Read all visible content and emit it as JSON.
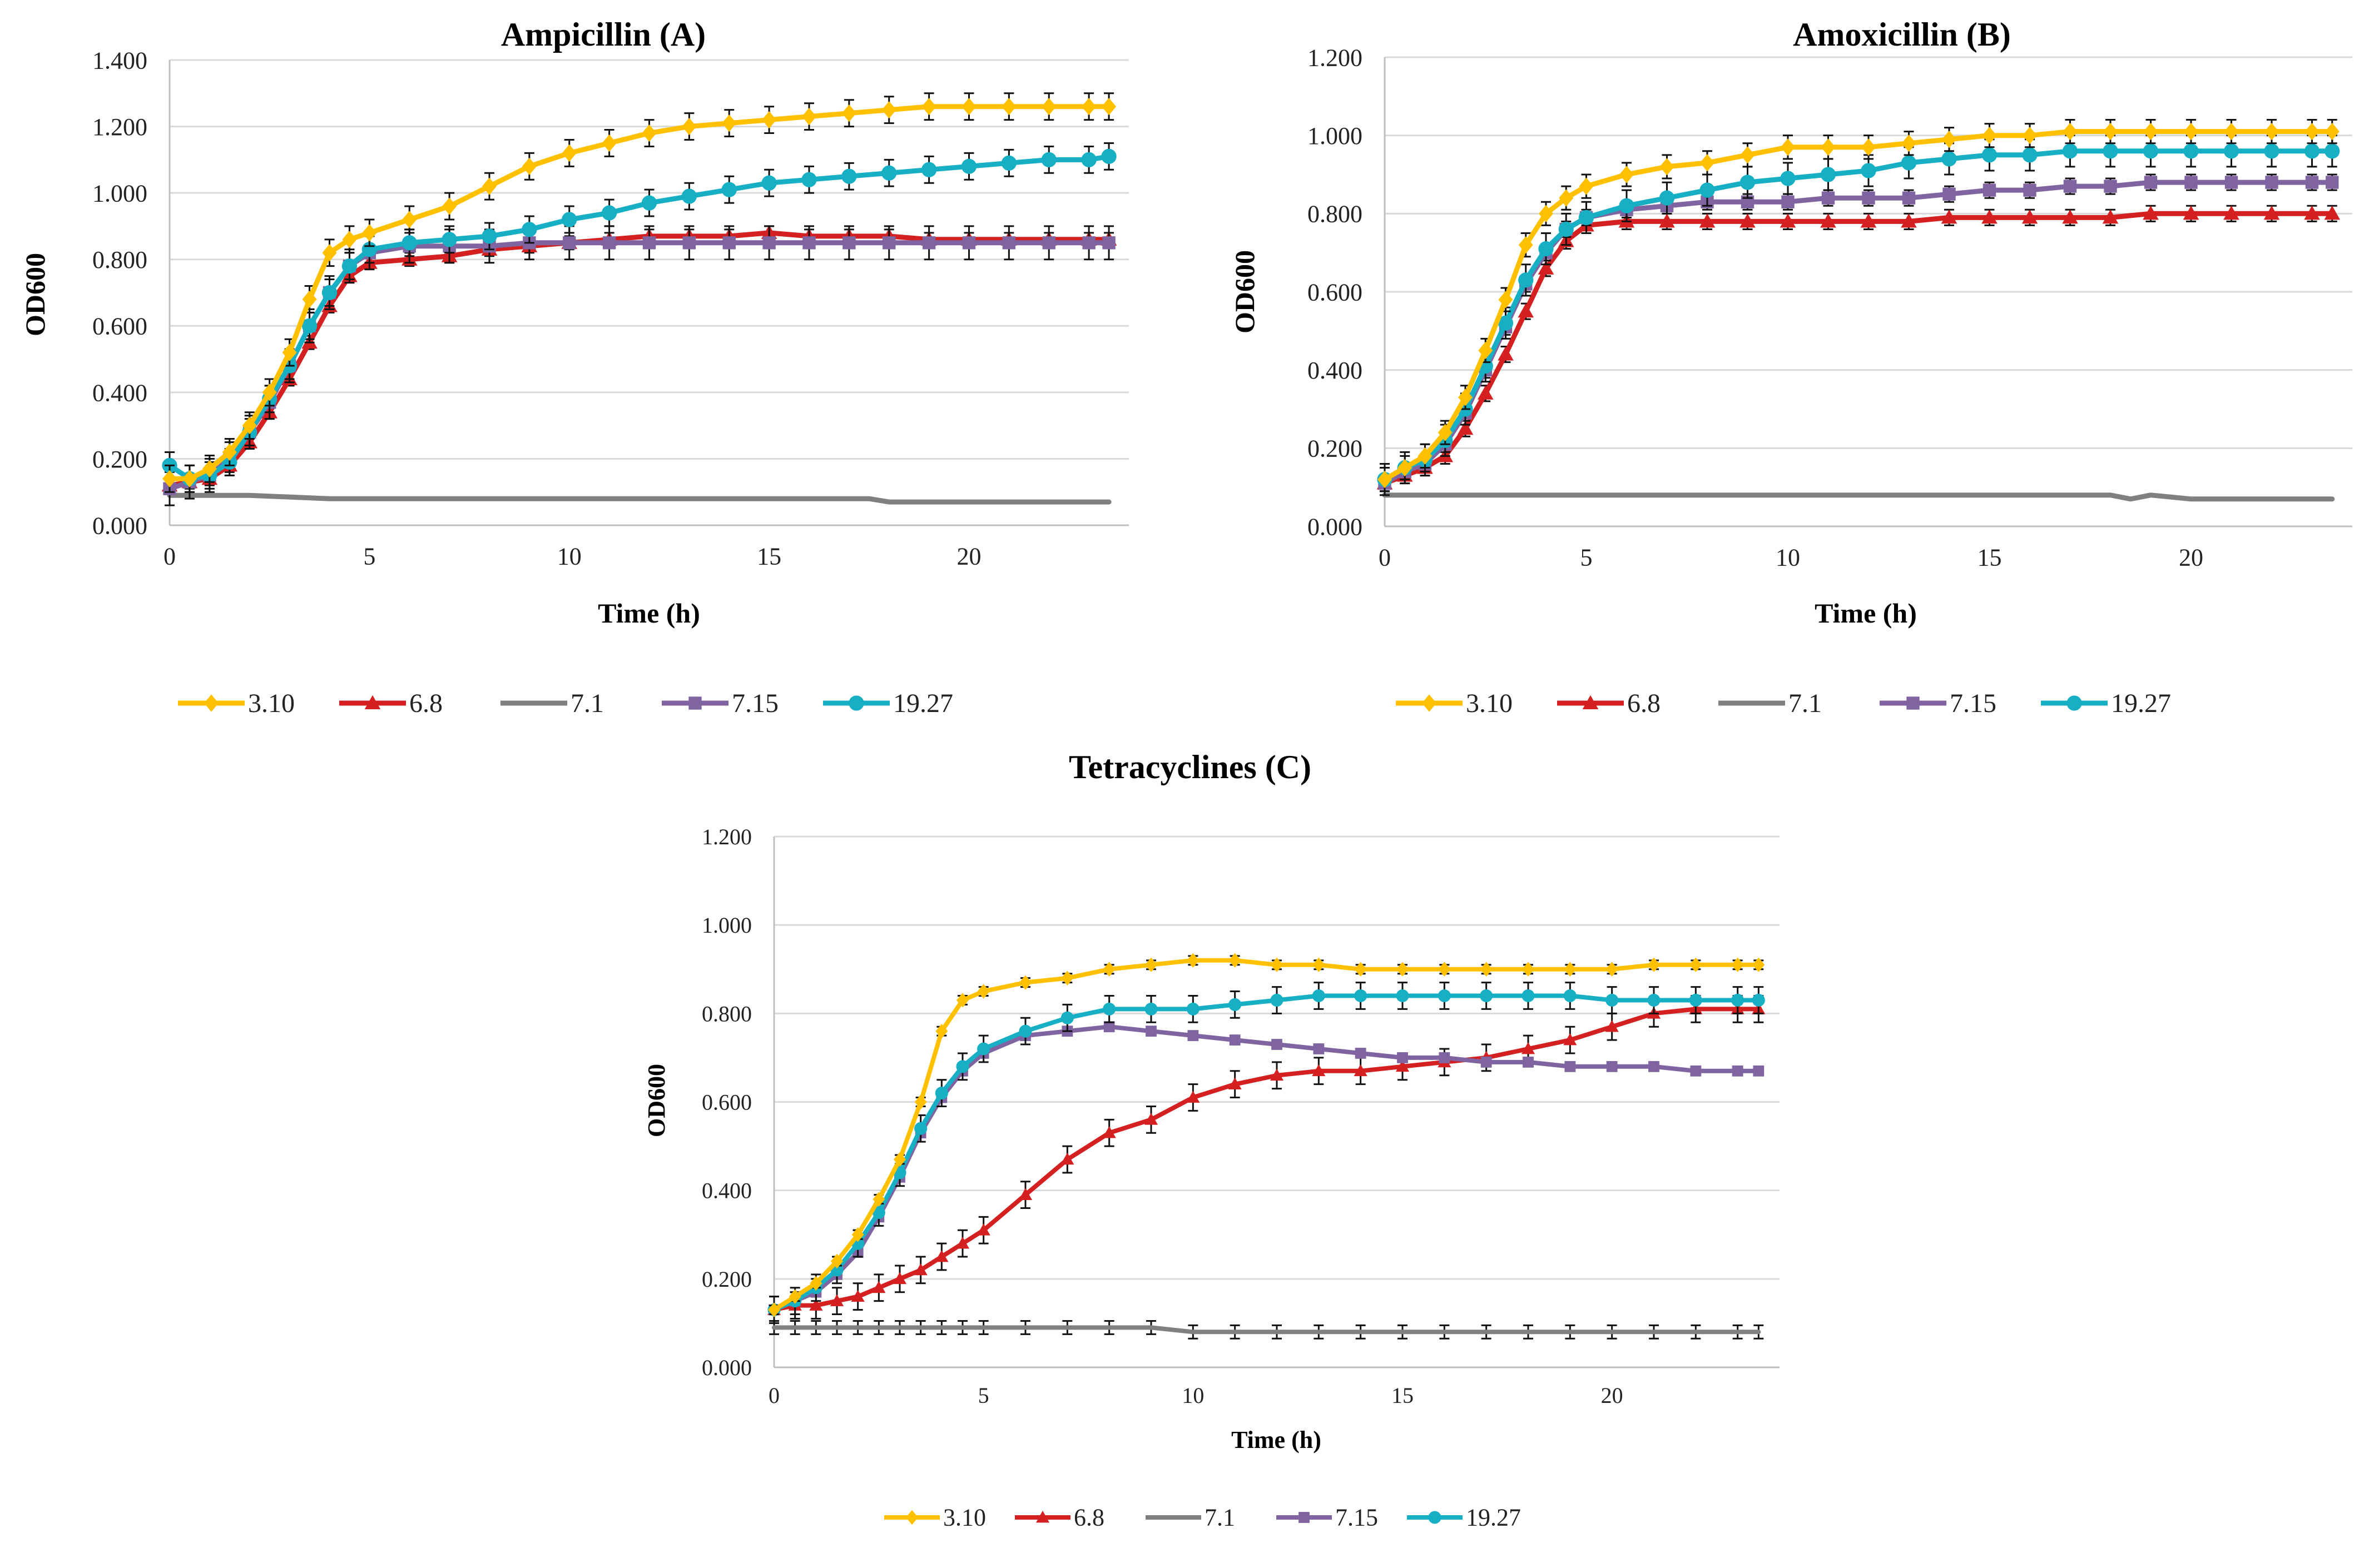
{
  "figure": {
    "series_names": [
      "3.10",
      "6.8",
      "7.1",
      "7.15",
      "19.27"
    ],
    "colors": {
      "3.10": "#FFC000",
      "6.8": "#D42020",
      "7.1": "#808080",
      "7.15": "#8064A2",
      "19.27": "#17AFC4"
    }
  },
  "chart_data": [
    {
      "type": "line",
      "title": "Ampicillin (A)",
      "xlabel": "Time (h)",
      "ylabel": "OD600",
      "xlim": [
        0,
        24
      ],
      "ylim": [
        0,
        1.4
      ],
      "xticks": [
        "0",
        "5",
        "10",
        "15",
        "20"
      ],
      "yticks": [
        "0.000",
        "0.200",
        "0.400",
        "0.600",
        "0.800",
        "1.000",
        "1.200",
        "1.400"
      ],
      "series": [
        {
          "name": "3.10",
          "marker": "diamond",
          "error": 0.04,
          "x": [
            0,
            0.5,
            1,
            1.5,
            2,
            2.5,
            3,
            3.5,
            4,
            4.5,
            5,
            6,
            7,
            8,
            9,
            10,
            11,
            12,
            13,
            14,
            15,
            16,
            17,
            18,
            19,
            20,
            21,
            22,
            23,
            23.5
          ],
          "y": [
            0.14,
            0.14,
            0.17,
            0.22,
            0.3,
            0.4,
            0.52,
            0.68,
            0.82,
            0.86,
            0.88,
            0.92,
            0.96,
            1.02,
            1.08,
            1.12,
            1.15,
            1.18,
            1.2,
            1.21,
            1.22,
            1.23,
            1.24,
            1.25,
            1.26,
            1.26,
            1.26,
            1.26,
            1.26,
            1.26
          ]
        },
        {
          "name": "6.8",
          "marker": "triangle",
          "error": 0.02,
          "x": [
            0,
            0.5,
            1,
            1.5,
            2,
            2.5,
            3,
            3.5,
            4,
            4.5,
            5,
            6,
            7,
            8,
            9,
            10,
            11,
            12,
            13,
            14,
            15,
            16,
            17,
            18,
            19,
            20,
            21,
            22,
            23,
            23.5
          ],
          "y": [
            0.12,
            0.13,
            0.14,
            0.18,
            0.25,
            0.34,
            0.44,
            0.55,
            0.66,
            0.75,
            0.79,
            0.8,
            0.81,
            0.83,
            0.84,
            0.85,
            0.86,
            0.87,
            0.87,
            0.87,
            0.88,
            0.87,
            0.87,
            0.87,
            0.86,
            0.86,
            0.86,
            0.86,
            0.86,
            0.86
          ]
        },
        {
          "name": "7.1",
          "marker": "none",
          "error": 0,
          "x": [
            0,
            2,
            4,
            6,
            8,
            10,
            12,
            14,
            16,
            17.5,
            18,
            20,
            22,
            23.5
          ],
          "y": [
            0.09,
            0.09,
            0.08,
            0.08,
            0.08,
            0.08,
            0.08,
            0.08,
            0.08,
            0.08,
            0.07,
            0.07,
            0.07,
            0.07
          ]
        },
        {
          "name": "7.15",
          "marker": "square",
          "error": 0.05,
          "x": [
            0,
            0.5,
            1,
            1.5,
            2,
            2.5,
            3,
            3.5,
            4,
            4.5,
            5,
            6,
            7,
            8,
            9,
            10,
            11,
            12,
            13,
            14,
            15,
            16,
            17,
            18,
            19,
            20,
            21,
            22,
            23,
            23.5
          ],
          "y": [
            0.11,
            0.13,
            0.15,
            0.2,
            0.28,
            0.37,
            0.48,
            0.6,
            0.7,
            0.78,
            0.82,
            0.84,
            0.84,
            0.84,
            0.85,
            0.85,
            0.85,
            0.85,
            0.85,
            0.85,
            0.85,
            0.85,
            0.85,
            0.85,
            0.85,
            0.85,
            0.85,
            0.85,
            0.85,
            0.85
          ]
        },
        {
          "name": "19.27",
          "marker": "circle",
          "error": 0.04,
          "x": [
            0,
            0.5,
            1,
            1.5,
            2,
            2.5,
            3,
            3.5,
            4,
            4.5,
            5,
            6,
            7,
            8,
            9,
            10,
            11,
            12,
            13,
            14,
            15,
            16,
            17,
            18,
            19,
            20,
            21,
            22,
            23,
            23.5
          ],
          "y": [
            0.18,
            0.14,
            0.15,
            0.19,
            0.28,
            0.38,
            0.48,
            0.6,
            0.7,
            0.78,
            0.83,
            0.85,
            0.86,
            0.87,
            0.89,
            0.92,
            0.94,
            0.97,
            0.99,
            1.01,
            1.03,
            1.04,
            1.05,
            1.06,
            1.07,
            1.08,
            1.09,
            1.1,
            1.1,
            1.11
          ]
        }
      ]
    },
    {
      "type": "line",
      "title": "Amoxicillin (B)",
      "xlabel": "Time (h)",
      "ylabel": "OD600",
      "xlim": [
        0,
        24
      ],
      "ylim": [
        0,
        1.2
      ],
      "xticks": [
        "0",
        "5",
        "10",
        "15",
        "20"
      ],
      "yticks": [
        "0.000",
        "0.200",
        "0.400",
        "0.600",
        "0.800",
        "1.000",
        "1.200"
      ],
      "series": [
        {
          "name": "3.10",
          "marker": "diamond",
          "error": 0.03,
          "x": [
            0,
            0.5,
            1,
            1.5,
            2,
            2.5,
            3,
            3.5,
            4,
            4.5,
            5,
            6,
            7,
            8,
            9,
            10,
            11,
            12,
            13,
            14,
            15,
            16,
            17,
            18,
            19,
            20,
            21,
            22,
            23,
            23.5
          ],
          "y": [
            0.12,
            0.15,
            0.18,
            0.24,
            0.33,
            0.45,
            0.58,
            0.72,
            0.8,
            0.84,
            0.87,
            0.9,
            0.92,
            0.93,
            0.95,
            0.97,
            0.97,
            0.97,
            0.98,
            0.99,
            1.0,
            1.0,
            1.01,
            1.01,
            1.01,
            1.01,
            1.01,
            1.01,
            1.01,
            1.01
          ]
        },
        {
          "name": "6.8",
          "marker": "triangle",
          "error": 0.02,
          "x": [
            0,
            0.5,
            1,
            1.5,
            2,
            2.5,
            3,
            3.5,
            4,
            4.5,
            5,
            6,
            7,
            8,
            9,
            10,
            11,
            12,
            13,
            14,
            15,
            16,
            17,
            18,
            19,
            20,
            21,
            22,
            23,
            23.5
          ],
          "y": [
            0.11,
            0.13,
            0.15,
            0.18,
            0.25,
            0.34,
            0.44,
            0.55,
            0.66,
            0.73,
            0.77,
            0.78,
            0.78,
            0.78,
            0.78,
            0.78,
            0.78,
            0.78,
            0.78,
            0.79,
            0.79,
            0.79,
            0.79,
            0.79,
            0.8,
            0.8,
            0.8,
            0.8,
            0.8,
            0.8
          ]
        },
        {
          "name": "7.1",
          "marker": "none",
          "error": 0,
          "x": [
            0,
            2,
            4,
            6,
            8,
            10,
            12,
            14,
            16,
            18,
            18.5,
            19,
            20,
            22,
            23.5
          ],
          "y": [
            0.08,
            0.08,
            0.08,
            0.08,
            0.08,
            0.08,
            0.08,
            0.08,
            0.08,
            0.08,
            0.07,
            0.08,
            0.07,
            0.07,
            0.07
          ]
        },
        {
          "name": "7.15",
          "marker": "square",
          "error": 0.02,
          "x": [
            0,
            0.5,
            1,
            1.5,
            2,
            2.5,
            3,
            3.5,
            4,
            4.5,
            5,
            6,
            7,
            8,
            9,
            10,
            11,
            12,
            13,
            14,
            15,
            16,
            17,
            18,
            19,
            20,
            21,
            22,
            23,
            23.5
          ],
          "y": [
            0.11,
            0.14,
            0.16,
            0.21,
            0.29,
            0.4,
            0.51,
            0.62,
            0.7,
            0.76,
            0.79,
            0.81,
            0.82,
            0.83,
            0.83,
            0.83,
            0.84,
            0.84,
            0.84,
            0.85,
            0.86,
            0.86,
            0.87,
            0.87,
            0.88,
            0.88,
            0.88,
            0.88,
            0.88,
            0.88
          ]
        },
        {
          "name": "19.27",
          "marker": "circle",
          "error": 0.04,
          "x": [
            0,
            0.5,
            1,
            1.5,
            2,
            2.5,
            3,
            3.5,
            4,
            4.5,
            5,
            6,
            7,
            8,
            9,
            10,
            11,
            12,
            13,
            14,
            15,
            16,
            17,
            18,
            19,
            20,
            21,
            22,
            23,
            23.5
          ],
          "y": [
            0.12,
            0.15,
            0.17,
            0.22,
            0.3,
            0.41,
            0.52,
            0.63,
            0.71,
            0.76,
            0.79,
            0.82,
            0.84,
            0.86,
            0.88,
            0.89,
            0.9,
            0.91,
            0.93,
            0.94,
            0.95,
            0.95,
            0.96,
            0.96,
            0.96,
            0.96,
            0.96,
            0.96,
            0.96,
            0.96
          ]
        }
      ]
    },
    {
      "type": "line",
      "title": "Tetracyclines (C)",
      "xlabel": "Time (h)",
      "ylabel": "OD600",
      "xlim": [
        0,
        24
      ],
      "ylim": [
        0,
        1.2
      ],
      "xticks": [
        "0",
        "5",
        "10",
        "15",
        "20"
      ],
      "yticks": [
        "0.000",
        "0.200",
        "0.400",
        "0.600",
        "0.800",
        "1.000",
        "1.200"
      ],
      "series": [
        {
          "name": "3.10",
          "marker": "diamond",
          "error": 0.01,
          "x": [
            0,
            0.5,
            1,
            1.5,
            2,
            2.5,
            3,
            3.5,
            4,
            4.5,
            5,
            6,
            7,
            8,
            9,
            10,
            11,
            12,
            13,
            14,
            15,
            16,
            17,
            18,
            19,
            20,
            21,
            22,
            23,
            23.5
          ],
          "y": [
            0.13,
            0.16,
            0.19,
            0.24,
            0.3,
            0.38,
            0.47,
            0.6,
            0.76,
            0.83,
            0.85,
            0.87,
            0.88,
            0.9,
            0.91,
            0.92,
            0.92,
            0.91,
            0.91,
            0.9,
            0.9,
            0.9,
            0.9,
            0.9,
            0.9,
            0.9,
            0.91,
            0.91,
            0.91,
            0.91
          ]
        },
        {
          "name": "6.8",
          "marker": "triangle",
          "error": 0.03,
          "x": [
            0,
            0.5,
            1,
            1.5,
            2,
            2.5,
            3,
            3.5,
            4,
            4.5,
            5,
            6,
            7,
            8,
            9,
            10,
            11,
            12,
            13,
            14,
            15,
            16,
            17,
            18,
            19,
            20,
            21,
            22,
            23,
            23.5
          ],
          "y": [
            0.13,
            0.14,
            0.14,
            0.15,
            0.16,
            0.18,
            0.2,
            0.22,
            0.25,
            0.28,
            0.31,
            0.39,
            0.47,
            0.53,
            0.56,
            0.61,
            0.64,
            0.66,
            0.67,
            0.67,
            0.68,
            0.69,
            0.7,
            0.72,
            0.74,
            0.77,
            0.8,
            0.81,
            0.81,
            0.81
          ]
        },
        {
          "name": "7.1",
          "marker": "none",
          "error": 0.015,
          "x": [
            0,
            0.5,
            1,
            1.5,
            2,
            2.5,
            3,
            3.5,
            4,
            4.5,
            5,
            6,
            7,
            8,
            9,
            10,
            11,
            12,
            13,
            14,
            15,
            16,
            17,
            18,
            19,
            20,
            21,
            22,
            23,
            23.5
          ],
          "y": [
            0.09,
            0.09,
            0.09,
            0.09,
            0.09,
            0.09,
            0.09,
            0.09,
            0.09,
            0.09,
            0.09,
            0.09,
            0.09,
            0.09,
            0.09,
            0.08,
            0.08,
            0.08,
            0.08,
            0.08,
            0.08,
            0.08,
            0.08,
            0.08,
            0.08,
            0.08,
            0.08,
            0.08,
            0.08,
            0.08
          ]
        },
        {
          "name": "7.15",
          "marker": "square",
          "error": 0.01,
          "x": [
            0,
            0.5,
            1,
            1.5,
            2,
            2.5,
            3,
            3.5,
            4,
            4.5,
            5,
            6,
            7,
            8,
            9,
            10,
            11,
            12,
            13,
            14,
            15,
            16,
            17,
            18,
            19,
            20,
            21,
            22,
            23,
            23.5
          ],
          "y": [
            0.13,
            0.15,
            0.17,
            0.21,
            0.26,
            0.34,
            0.43,
            0.53,
            0.61,
            0.67,
            0.71,
            0.75,
            0.76,
            0.77,
            0.76,
            0.75,
            0.74,
            0.73,
            0.72,
            0.71,
            0.7,
            0.7,
            0.69,
            0.69,
            0.68,
            0.68,
            0.68,
            0.67,
            0.67,
            0.67
          ]
        },
        {
          "name": "19.27",
          "marker": "circle",
          "error": 0.03,
          "x": [
            0,
            0.5,
            1,
            1.5,
            2,
            2.5,
            3,
            3.5,
            4,
            4.5,
            5,
            6,
            7,
            8,
            9,
            10,
            11,
            12,
            13,
            14,
            15,
            16,
            17,
            18,
            19,
            20,
            21,
            22,
            23,
            23.5
          ],
          "y": [
            0.13,
            0.15,
            0.18,
            0.22,
            0.28,
            0.35,
            0.44,
            0.54,
            0.62,
            0.68,
            0.72,
            0.76,
            0.79,
            0.81,
            0.81,
            0.81,
            0.82,
            0.83,
            0.84,
            0.84,
            0.84,
            0.84,
            0.84,
            0.84,
            0.84,
            0.83,
            0.83,
            0.83,
            0.83,
            0.83
          ]
        }
      ]
    }
  ]
}
